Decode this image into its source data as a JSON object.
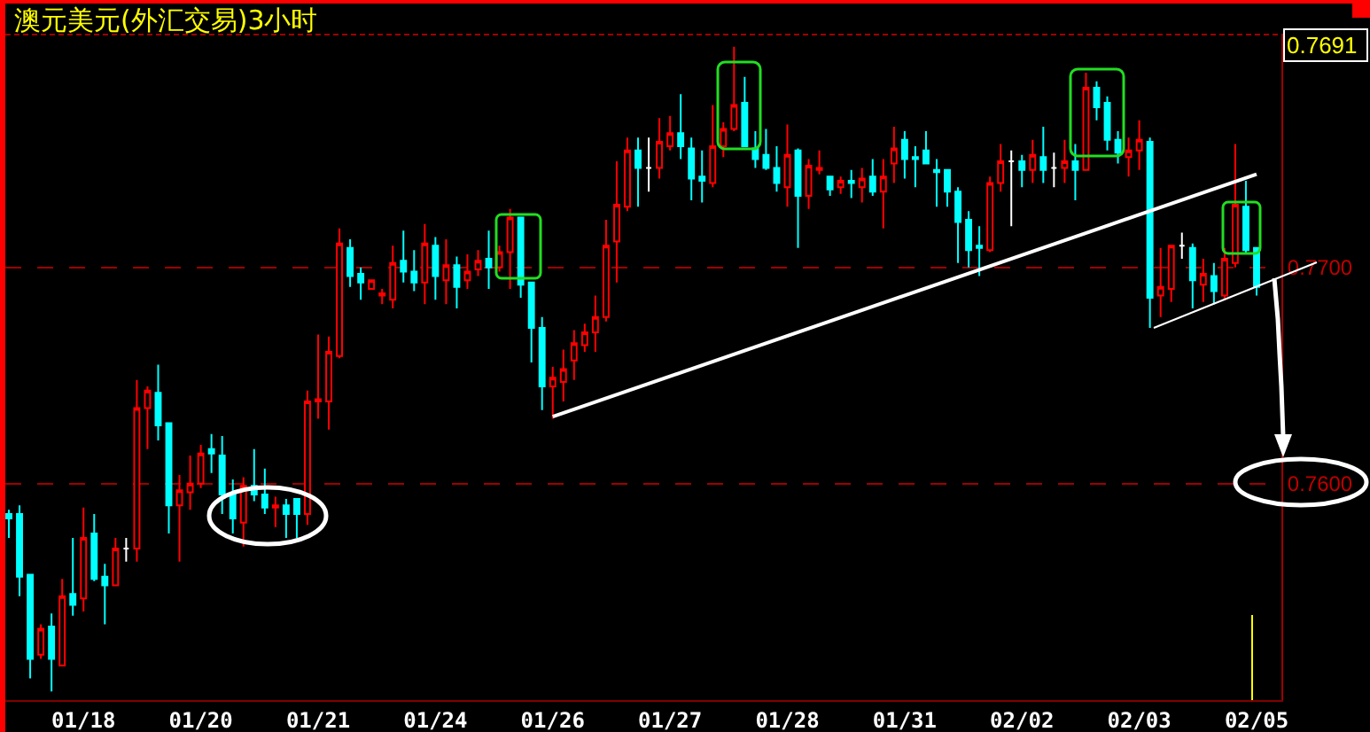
{
  "chart_data": {
    "type": "candlestick",
    "title": "澳元美元(外汇交易)3小时",
    "categories": [
      null,
      null,
      null,
      null,
      null,
      null,
      null,
      "01/18",
      null,
      null,
      null,
      null,
      null,
      null,
      null,
      null,
      null,
      null,
      "01/20",
      null,
      null,
      null,
      null,
      null,
      null,
      null,
      null,
      null,
      null,
      "01/21",
      null,
      null,
      null,
      null,
      null,
      null,
      null,
      null,
      null,
      null,
      "01/24",
      null,
      null,
      null,
      null,
      null,
      null,
      null,
      null,
      null,
      null,
      "01/26",
      null,
      null,
      null,
      null,
      null,
      null,
      null,
      null,
      null,
      null,
      "01/27",
      null,
      null,
      null,
      null,
      null,
      null,
      null,
      null,
      null,
      null,
      "01/28",
      null,
      null,
      null,
      null,
      null,
      null,
      null,
      null,
      null,
      null,
      "01/31",
      null,
      null,
      null,
      null,
      null,
      null,
      null,
      null,
      null,
      null,
      "02/02",
      null,
      null,
      null,
      null,
      null,
      null,
      null,
      null,
      null,
      null,
      "02/03",
      null,
      null,
      null,
      null,
      null,
      null,
      null,
      null,
      null,
      null,
      "02/05"
    ],
    "ohlc": [
      [
        0.7586,
        0.7588,
        0.7575,
        0.7584
      ],
      [
        0.7586,
        0.759,
        0.7548,
        0.7557
      ],
      [
        0.7558,
        0.7558,
        0.751,
        0.7519
      ],
      [
        0.7521,
        0.7535,
        0.7519,
        0.7533
      ],
      [
        0.7534,
        0.754,
        0.7504,
        0.7519
      ],
      [
        0.7516,
        0.7556,
        0.7516,
        0.7548
      ],
      [
        0.7549,
        0.7575,
        0.7539,
        0.7544
      ],
      [
        0.7547,
        0.7589,
        0.7541,
        0.7575
      ],
      [
        0.7577,
        0.7586,
        0.7555,
        0.7556
      ],
      [
        0.7557,
        0.7563,
        0.7535,
        0.7553
      ],
      [
        0.7553,
        0.7575,
        0.7553,
        0.757
      ],
      [
        0.757,
        0.7575,
        0.7564,
        0.757
      ],
      [
        0.757,
        0.7648,
        0.7564,
        0.7635
      ],
      [
        0.7635,
        0.7645,
        0.7616,
        0.7643
      ],
      [
        0.7642,
        0.7655,
        0.762,
        0.7627
      ],
      [
        0.7628,
        0.7628,
        0.7577,
        0.759
      ],
      [
        0.759,
        0.7604,
        0.7564,
        0.7597
      ],
      [
        0.7596,
        0.7613,
        0.7588,
        0.76
      ],
      [
        0.76,
        0.7618,
        0.7598,
        0.7614
      ],
      [
        0.7616,
        0.7623,
        0.7605,
        0.7614
      ],
      [
        0.7613,
        0.7622,
        0.7586,
        0.7595
      ],
      [
        0.7595,
        0.7602,
        0.7577,
        0.7584
      ],
      [
        0.7582,
        0.7603,
        0.7571,
        0.7599
      ],
      [
        0.7599,
        0.7616,
        0.7592,
        0.7595
      ],
      [
        0.7595,
        0.7607,
        0.7586,
        0.7589
      ],
      [
        0.7589,
        0.7594,
        0.758,
        0.759
      ],
      [
        0.759,
        0.7593,
        0.7575,
        0.7586
      ],
      [
        0.7593,
        0.7593,
        0.7575,
        0.7586
      ],
      [
        0.7586,
        0.7643,
        0.7581,
        0.7638
      ],
      [
        0.7638,
        0.7669,
        0.763,
        0.7639
      ],
      [
        0.7638,
        0.7668,
        0.7625,
        0.7661
      ],
      [
        0.7659,
        0.7718,
        0.7658,
        0.7711
      ],
      [
        0.7709,
        0.7713,
        0.7691,
        0.7696
      ],
      [
        0.7697,
        0.77,
        0.7685,
        0.7693
      ],
      [
        0.769,
        0.7694,
        0.769,
        0.7694
      ],
      [
        0.7687,
        0.769,
        0.7683,
        0.7688
      ],
      [
        0.7685,
        0.771,
        0.7681,
        0.7702
      ],
      [
        0.7703,
        0.7717,
        0.7693,
        0.7698
      ],
      [
        0.7698,
        0.7708,
        0.7689,
        0.7693
      ],
      [
        0.7693,
        0.772,
        0.7683,
        0.7711
      ],
      [
        0.771,
        0.7714,
        0.7685,
        0.7696
      ],
      [
        0.7694,
        0.7713,
        0.7683,
        0.7701
      ],
      [
        0.7701,
        0.7705,
        0.7681,
        0.7691
      ],
      [
        0.7694,
        0.7706,
        0.769,
        0.7698
      ],
      [
        0.7699,
        0.7708,
        0.7696,
        0.7703
      ],
      [
        0.7704,
        0.7717,
        0.769,
        0.77
      ],
      [
        0.77,
        0.771,
        0.7698,
        0.7707
      ],
      [
        0.7707,
        0.7727,
        0.769,
        0.7723
      ],
      [
        0.7723,
        0.7723,
        0.7686,
        0.7692
      ],
      [
        0.7693,
        0.7693,
        0.7656,
        0.7672
      ],
      [
        0.7672,
        0.7677,
        0.7634,
        0.7645
      ],
      [
        0.7645,
        0.7654,
        0.763,
        0.7649
      ],
      [
        0.7647,
        0.7662,
        0.7638,
        0.7653
      ],
      [
        0.7657,
        0.7671,
        0.7648,
        0.7665
      ],
      [
        0.7664,
        0.7674,
        0.7661,
        0.767
      ],
      [
        0.767,
        0.7687,
        0.7661,
        0.7677
      ],
      [
        0.7677,
        0.7722,
        0.7675,
        0.771
      ],
      [
        0.7712,
        0.7749,
        0.7693,
        0.7729
      ],
      [
        0.7728,
        0.776,
        0.7726,
        0.7754
      ],
      [
        0.7754,
        0.776,
        0.7728,
        0.7746
      ],
      [
        0.7746,
        0.776,
        0.7735,
        0.7746
      ],
      [
        0.7746,
        0.7769,
        0.7741,
        0.7758
      ],
      [
        0.7756,
        0.777,
        0.7754,
        0.7762
      ],
      [
        0.7762,
        0.778,
        0.775,
        0.7756
      ],
      [
        0.7755,
        0.776,
        0.7731,
        0.7741
      ],
      [
        0.7742,
        0.7754,
        0.773,
        0.774
      ],
      [
        0.7739,
        0.7775,
        0.7737,
        0.7756
      ],
      [
        0.7756,
        0.7767,
        0.7751,
        0.7764
      ],
      [
        0.7764,
        0.7802,
        0.7763,
        0.7775
      ],
      [
        0.7776,
        0.7788,
        0.7756,
        0.7756
      ],
      [
        0.7755,
        0.7763,
        0.7746,
        0.775
      ],
      [
        0.7752,
        0.7764,
        0.7745,
        0.7746
      ],
      [
        0.7746,
        0.7756,
        0.7735,
        0.7739
      ],
      [
        0.7737,
        0.7766,
        0.7728,
        0.7752
      ],
      [
        0.7754,
        0.7755,
        0.7709,
        0.7733
      ],
      [
        0.7733,
        0.775,
        0.7727,
        0.7747
      ],
      [
        0.7745,
        0.7754,
        0.7743,
        0.7746
      ],
      [
        0.7742,
        0.7742,
        0.7733,
        0.7736
      ],
      [
        0.7737,
        0.7742,
        0.7734,
        0.774
      ],
      [
        0.774,
        0.7745,
        0.7732,
        0.7739
      ],
      [
        0.7737,
        0.7746,
        0.773,
        0.7741
      ],
      [
        0.7742,
        0.775,
        0.7733,
        0.7735
      ],
      [
        0.7735,
        0.775,
        0.7718,
        0.7742
      ],
      [
        0.7748,
        0.7765,
        0.7739,
        0.7755
      ],
      [
        0.7759,
        0.7763,
        0.7741,
        0.775
      ],
      [
        0.7751,
        0.7756,
        0.7737,
        0.775
      ],
      [
        0.7754,
        0.7763,
        0.7748,
        0.7748
      ],
      [
        0.7745,
        0.775,
        0.7728,
        0.7744
      ],
      [
        0.7745,
        0.7745,
        0.7728,
        0.7735
      ],
      [
        0.7735,
        0.7737,
        0.7702,
        0.7721
      ],
      [
        0.7722,
        0.7726,
        0.77,
        0.7708
      ],
      [
        0.771,
        0.7719,
        0.7696,
        0.7709
      ],
      [
        0.7708,
        0.7742,
        0.7707,
        0.7739
      ],
      [
        0.7739,
        0.7757,
        0.7735,
        0.7749
      ],
      [
        0.7749,
        0.7754,
        0.7719,
        0.7749
      ],
      [
        0.7749,
        0.7752,
        0.7737,
        0.7745
      ],
      [
        0.7745,
        0.7759,
        0.7739,
        0.7752
      ],
      [
        0.7751,
        0.7765,
        0.7739,
        0.7745
      ],
      [
        0.7746,
        0.7753,
        0.7737,
        0.7746
      ],
      [
        0.7746,
        0.7759,
        0.7739,
        0.7749
      ],
      [
        0.7749,
        0.7757,
        0.7731,
        0.7745
      ],
      [
        0.7745,
        0.779,
        0.7745,
        0.7783
      ],
      [
        0.7783,
        0.7786,
        0.7768,
        0.7774
      ],
      [
        0.7776,
        0.7779,
        0.7754,
        0.7759
      ],
      [
        0.7759,
        0.7763,
        0.7748,
        0.7753
      ],
      [
        0.7751,
        0.776,
        0.7742,
        0.7754
      ],
      [
        0.7754,
        0.7768,
        0.7745,
        0.7759
      ],
      [
        0.7758,
        0.776,
        0.7672,
        0.7686
      ],
      [
        0.7687,
        0.7709,
        0.7677,
        0.7691
      ],
      [
        0.769,
        0.771,
        0.7684,
        0.771
      ],
      [
        0.771,
        0.7716,
        0.7704,
        0.771
      ],
      [
        0.7709,
        0.7711,
        0.7681,
        0.7694
      ],
      [
        0.7692,
        0.7704,
        0.7684,
        0.7697
      ],
      [
        0.7696,
        0.7702,
        0.7683,
        0.7689
      ],
      [
        0.7687,
        0.7709,
        0.7685,
        0.7704
      ],
      [
        0.7702,
        0.7757,
        0.77,
        0.7729
      ],
      [
        0.7728,
        0.774,
        0.7706,
        0.7708
      ],
      [
        0.7709,
        0.7709,
        0.7687,
        0.7691
      ]
    ],
    "colors": [
      "#00ffff",
      "#00ffff",
      "#00ffff",
      "#ff0000",
      "#00ffff",
      "#ff0000",
      "#00ffff",
      "#ff0000",
      "#00ffff",
      "#00ffff",
      "#ff0000",
      "#ffffff",
      "#ff0000",
      "#ff0000",
      "#00ffff",
      "#00ffff",
      "#ff0000",
      "#ff0000",
      "#ff0000",
      "#00ffff",
      "#00ffff",
      "#00ffff",
      "#ff0000",
      "#00ffff",
      "#00ffff",
      "#ff0000",
      "#00ffff",
      "#00ffff",
      "#ff0000",
      "#ff0000",
      "#ff0000",
      "#ff0000",
      "#00ffff",
      "#00ffff",
      "#ff0000",
      "#ff0000",
      "#ff0000",
      "#00ffff",
      "#00ffff",
      "#ff0000",
      "#00ffff",
      "#ff0000",
      "#00ffff",
      "#ff0000",
      "#ff0000",
      "#00ffff",
      "#ff0000",
      "#ff0000",
      "#00ffff",
      "#00ffff",
      "#00ffff",
      "#ff0000",
      "#ff0000",
      "#ff0000",
      "#ff0000",
      "#ff0000",
      "#ff0000",
      "#ff0000",
      "#ff0000",
      "#00ffff",
      "#ffffff",
      "#ff0000",
      "#ff0000",
      "#00ffff",
      "#00ffff",
      "#00ffff",
      "#ff0000",
      "#ff0000",
      "#ff0000",
      "#00ffff",
      "#00ffff",
      "#00ffff",
      "#00ffff",
      "#ff0000",
      "#00ffff",
      "#ff0000",
      "#ff0000",
      "#00ffff",
      "#ff0000",
      "#00ffff",
      "#ff0000",
      "#00ffff",
      "#ff0000",
      "#ff0000",
      "#00ffff",
      "#00ffff",
      "#00ffff",
      "#00ffff",
      "#00ffff",
      "#00ffff",
      "#00ffff",
      "#00ffff",
      "#ff0000",
      "#ff0000",
      "#ffffff",
      "#00ffff",
      "#ff0000",
      "#00ffff",
      "#ffffff",
      "#ff0000",
      "#00ffff",
      "#ff0000",
      "#00ffff",
      "#00ffff",
      "#00ffff",
      "#ff0000",
      "#ff0000",
      "#00ffff",
      "#ff0000",
      "#ff0000",
      "#ffffff",
      "#00ffff",
      "#ff0000",
      "#00ffff",
      "#ff0000",
      "#ff0000",
      "#00ffff",
      "#00ffff"
    ],
    "series": [
      {
        "type": "line",
        "color": "#ffffff",
        "x": [
          "01/26",
          "02/05"
        ],
        "values": [
          0.7631,
          0.7743
        ]
      }
    ],
    "ylim": [
      0.75,
      0.7808
    ],
    "yticks": [
      {
        "value": 0.77,
        "label": "0.7700"
      },
      {
        "value": 0.76,
        "label": "0.7600"
      }
    ],
    "grid": "y",
    "annotations": [
      "0.7691"
    ]
  }
}
